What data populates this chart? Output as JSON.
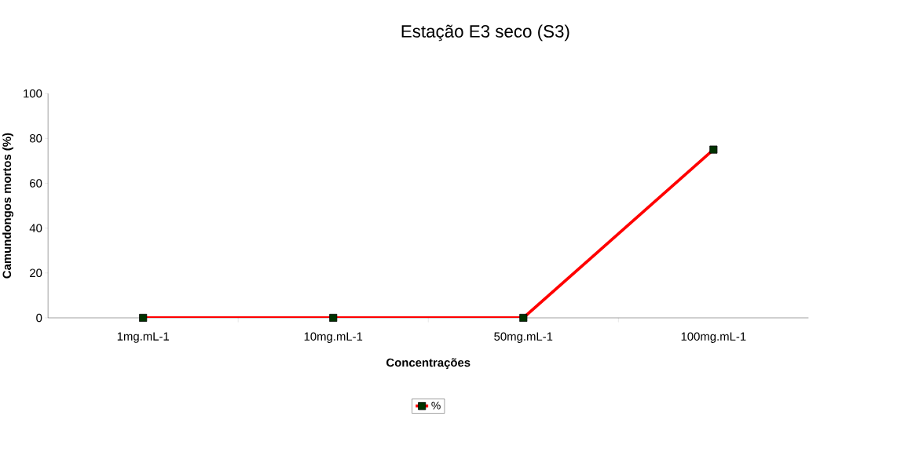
{
  "chart_data": {
    "type": "line",
    "title": "Estação E3 seco (S3)",
    "xlabel": "Concentrações",
    "ylabel": "Camundongos mortos (%)",
    "categories": [
      "1mg.mL-1",
      "10mg.mL-1",
      "50mg.mL-1",
      "100mg.mL-1"
    ],
    "series": [
      {
        "name": "%",
        "color": "#ff0000",
        "values": [
          0,
          0,
          0,
          75
        ]
      }
    ],
    "ylim": [
      0,
      100
    ],
    "yticks": [
      0,
      20,
      40,
      60,
      80,
      100
    ],
    "grid": false,
    "legend": "bottom",
    "marker": "square",
    "line_style": "solid"
  }
}
